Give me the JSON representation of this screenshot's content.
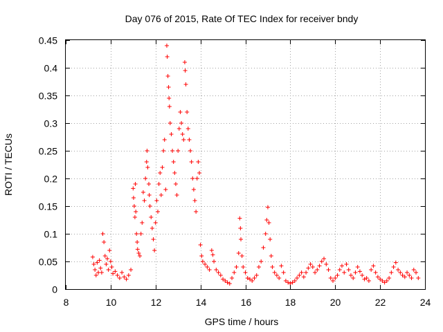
{
  "chart_data": {
    "type": "scatter",
    "title": "Day 076 of 2015, Rate Of TEC Index for receiver bndy",
    "xlabel": "GPS time / hours",
    "ylabel": "ROTI / TECUs",
    "xlim": [
      8,
      24
    ],
    "ylim": [
      0,
      0.45
    ],
    "xticks": [
      8,
      10,
      12,
      14,
      16,
      18,
      20,
      22,
      24
    ],
    "yticks": [
      0,
      0.05,
      0.1,
      0.15,
      0.2,
      0.25,
      0.3,
      0.35,
      0.4,
      0.45
    ],
    "xtick_labels": [
      "8",
      "10",
      "12",
      "14",
      "16",
      "18",
      "20",
      "22",
      "24"
    ],
    "ytick_labels": [
      "0",
      "0.05",
      "0.1",
      "0.15",
      "0.2",
      "0.25",
      "0.3",
      "0.35",
      "0.4",
      "0.45"
    ],
    "grid": true,
    "marker": "+",
    "color": "#ff0000",
    "series": [
      {
        "name": "ROTI",
        "points": [
          [
            9.2,
            0.058
          ],
          [
            9.25,
            0.045
          ],
          [
            9.3,
            0.035
          ],
          [
            9.35,
            0.025
          ],
          [
            9.4,
            0.048
          ],
          [
            9.45,
            0.03
          ],
          [
            9.5,
            0.052
          ],
          [
            9.55,
            0.038
          ],
          [
            9.6,
            0.03
          ],
          [
            9.65,
            0.1
          ],
          [
            9.7,
            0.085
          ],
          [
            9.75,
            0.06
          ],
          [
            9.8,
            0.045
          ],
          [
            9.85,
            0.055
          ],
          [
            9.9,
            0.035
          ],
          [
            9.95,
            0.07
          ],
          [
            10.0,
            0.05
          ],
          [
            10.05,
            0.04
          ],
          [
            10.1,
            0.028
          ],
          [
            10.2,
            0.032
          ],
          [
            10.3,
            0.025
          ],
          [
            10.4,
            0.02
          ],
          [
            10.5,
            0.03
          ],
          [
            10.6,
            0.022
          ],
          [
            10.7,
            0.018
          ],
          [
            10.8,
            0.025
          ],
          [
            10.9,
            0.035
          ],
          [
            11.0,
            0.182
          ],
          [
            11.02,
            0.165
          ],
          [
            11.05,
            0.15
          ],
          [
            11.08,
            0.13
          ],
          [
            11.1,
            0.19
          ],
          [
            11.12,
            0.14
          ],
          [
            11.15,
            0.1
          ],
          [
            11.18,
            0.085
          ],
          [
            11.2,
            0.072
          ],
          [
            11.25,
            0.065
          ],
          [
            11.3,
            0.06
          ],
          [
            11.35,
            0.1
          ],
          [
            11.4,
            0.12
          ],
          [
            11.45,
            0.175
          ],
          [
            11.5,
            0.16
          ],
          [
            11.55,
            0.2
          ],
          [
            11.6,
            0.23
          ],
          [
            11.62,
            0.25
          ],
          [
            11.65,
            0.22
          ],
          [
            11.7,
            0.19
          ],
          [
            11.72,
            0.17
          ],
          [
            11.75,
            0.15
          ],
          [
            11.8,
            0.13
          ],
          [
            11.85,
            0.11
          ],
          [
            11.9,
            0.09
          ],
          [
            11.95,
            0.07
          ],
          [
            12.0,
            0.12
          ],
          [
            12.05,
            0.16
          ],
          [
            12.1,
            0.14
          ],
          [
            12.15,
            0.19
          ],
          [
            12.2,
            0.21
          ],
          [
            12.25,
            0.17
          ],
          [
            12.3,
            0.22
          ],
          [
            12.35,
            0.25
          ],
          [
            12.4,
            0.27
          ],
          [
            12.45,
            0.18
          ],
          [
            12.5,
            0.44
          ],
          [
            12.52,
            0.42
          ],
          [
            12.55,
            0.385
          ],
          [
            12.58,
            0.365
          ],
          [
            12.6,
            0.345
          ],
          [
            12.62,
            0.33
          ],
          [
            12.65,
            0.3
          ],
          [
            12.7,
            0.28
          ],
          [
            12.75,
            0.25
          ],
          [
            12.8,
            0.23
          ],
          [
            12.85,
            0.21
          ],
          [
            12.9,
            0.19
          ],
          [
            12.95,
            0.17
          ],
          [
            13.0,
            0.25
          ],
          [
            13.05,
            0.29
          ],
          [
            13.1,
            0.32
          ],
          [
            13.15,
            0.3
          ],
          [
            13.2,
            0.28
          ],
          [
            13.25,
            0.27
          ],
          [
            13.3,
            0.41
          ],
          [
            13.32,
            0.395
          ],
          [
            13.35,
            0.37
          ],
          [
            13.4,
            0.32
          ],
          [
            13.45,
            0.29
          ],
          [
            13.5,
            0.27
          ],
          [
            13.55,
            0.25
          ],
          [
            13.6,
            0.23
          ],
          [
            13.65,
            0.2
          ],
          [
            13.7,
            0.18
          ],
          [
            13.75,
            0.16
          ],
          [
            13.8,
            0.14
          ],
          [
            13.85,
            0.2
          ],
          [
            13.9,
            0.23
          ],
          [
            13.95,
            0.21
          ],
          [
            14.0,
            0.08
          ],
          [
            14.05,
            0.06
          ],
          [
            14.1,
            0.05
          ],
          [
            14.2,
            0.045
          ],
          [
            14.3,
            0.04
          ],
          [
            14.4,
            0.035
          ],
          [
            14.5,
            0.07
          ],
          [
            14.55,
            0.062
          ],
          [
            14.6,
            0.05
          ],
          [
            14.7,
            0.035
          ],
          [
            14.8,
            0.03
          ],
          [
            14.9,
            0.025
          ],
          [
            15.0,
            0.018
          ],
          [
            15.1,
            0.015
          ],
          [
            15.2,
            0.012
          ],
          [
            15.3,
            0.01
          ],
          [
            15.4,
            0.02
          ],
          [
            15.5,
            0.03
          ],
          [
            15.6,
            0.04
          ],
          [
            15.7,
            0.065
          ],
          [
            15.75,
            0.128
          ],
          [
            15.78,
            0.11
          ],
          [
            15.8,
            0.09
          ],
          [
            15.85,
            0.06
          ],
          [
            15.9,
            0.04
          ],
          [
            16.0,
            0.03
          ],
          [
            16.1,
            0.02
          ],
          [
            16.2,
            0.018
          ],
          [
            16.3,
            0.015
          ],
          [
            16.4,
            0.02
          ],
          [
            16.5,
            0.025
          ],
          [
            16.6,
            0.04
          ],
          [
            16.7,
            0.05
          ],
          [
            16.8,
            0.075
          ],
          [
            16.9,
            0.1
          ],
          [
            16.95,
            0.125
          ],
          [
            17.0,
            0.148
          ],
          [
            17.05,
            0.12
          ],
          [
            17.1,
            0.09
          ],
          [
            17.15,
            0.06
          ],
          [
            17.2,
            0.04
          ],
          [
            17.3,
            0.03
          ],
          [
            17.4,
            0.025
          ],
          [
            17.5,
            0.02
          ],
          [
            17.6,
            0.042
          ],
          [
            17.7,
            0.03
          ],
          [
            17.8,
            0.015
          ],
          [
            17.9,
            0.012
          ],
          [
            18.0,
            0.01
          ],
          [
            18.1,
            0.012
          ],
          [
            18.2,
            0.015
          ],
          [
            18.3,
            0.02
          ],
          [
            18.4,
            0.025
          ],
          [
            18.5,
            0.03
          ],
          [
            18.6,
            0.022
          ],
          [
            18.7,
            0.03
          ],
          [
            18.8,
            0.038
          ],
          [
            18.9,
            0.045
          ],
          [
            19.0,
            0.04
          ],
          [
            19.1,
            0.03
          ],
          [
            19.2,
            0.035
          ],
          [
            19.3,
            0.042
          ],
          [
            19.4,
            0.05
          ],
          [
            19.5,
            0.055
          ],
          [
            19.6,
            0.045
          ],
          [
            19.7,
            0.035
          ],
          [
            19.8,
            0.02
          ],
          [
            19.9,
            0.015
          ],
          [
            20.0,
            0.02
          ],
          [
            20.1,
            0.025
          ],
          [
            20.2,
            0.035
          ],
          [
            20.3,
            0.042
          ],
          [
            20.4,
            0.03
          ],
          [
            20.5,
            0.045
          ],
          [
            20.6,
            0.035
          ],
          [
            20.7,
            0.025
          ],
          [
            20.8,
            0.02
          ],
          [
            20.9,
            0.03
          ],
          [
            21.0,
            0.04
          ],
          [
            21.1,
            0.032
          ],
          [
            21.2,
            0.025
          ],
          [
            21.3,
            0.018
          ],
          [
            21.4,
            0.02
          ],
          [
            21.5,
            0.015
          ],
          [
            21.6,
            0.035
          ],
          [
            21.7,
            0.042
          ],
          [
            21.8,
            0.03
          ],
          [
            21.9,
            0.022
          ],
          [
            22.0,
            0.018
          ],
          [
            22.1,
            0.015
          ],
          [
            22.2,
            0.012
          ],
          [
            22.3,
            0.015
          ],
          [
            22.4,
            0.02
          ],
          [
            22.5,
            0.03
          ],
          [
            22.6,
            0.04
          ],
          [
            22.7,
            0.048
          ],
          [
            22.8,
            0.035
          ],
          [
            22.9,
            0.03
          ],
          [
            23.0,
            0.025
          ],
          [
            23.1,
            0.022
          ],
          [
            23.2,
            0.03
          ],
          [
            23.3,
            0.025
          ],
          [
            23.4,
            0.02
          ],
          [
            23.5,
            0.035
          ],
          [
            23.6,
            0.03
          ],
          [
            23.7,
            0.02
          ]
        ]
      }
    ]
  }
}
